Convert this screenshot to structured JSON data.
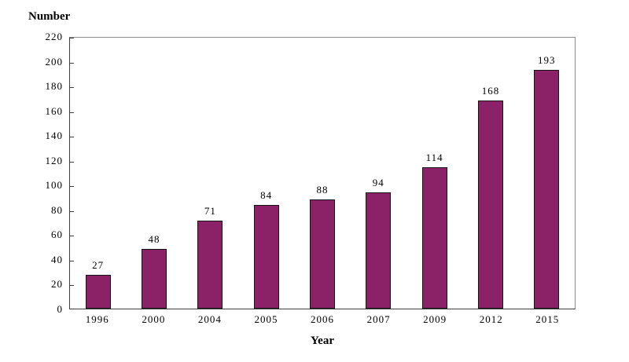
{
  "page": {
    "background_color": "#ffffff"
  },
  "chart_data": {
    "type": "bar",
    "title": "",
    "ylabel": "Number",
    "xlabel": "Year",
    "categories": [
      "1996",
      "2000",
      "2004",
      "2005",
      "2006",
      "2007",
      "2009",
      "2012",
      "2015"
    ],
    "values": [
      27,
      48,
      71,
      84,
      88,
      94,
      114,
      168,
      193
    ],
    "data_labels_shown": true,
    "ylim": [
      0,
      220
    ],
    "ytick_step": 20,
    "yticks": [
      0,
      20,
      40,
      60,
      80,
      100,
      120,
      140,
      160,
      180,
      200,
      220
    ],
    "grid": "off",
    "legend": "none",
    "bar_fill_color": "#8B2166",
    "bar_border_color": "#141414",
    "axis_line_color": "#3f3f3f",
    "plot_border_color": "#8c8c8c",
    "text_color": "#000000"
  }
}
